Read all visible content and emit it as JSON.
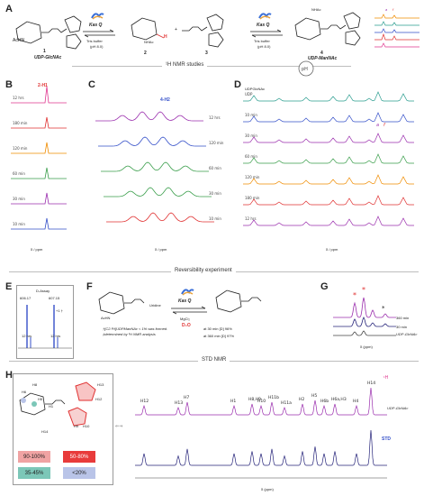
{
  "panels": {
    "A": {
      "label": "A",
      "compounds": [
        {
          "number": "1",
          "name": "UDP-GlcNAc"
        },
        {
          "number": "2",
          "name": ""
        },
        {
          "number": "3",
          "name": ""
        },
        {
          "number": "4",
          "name": "UDP-ManNAc"
        }
      ],
      "enzyme": "Kas Q",
      "buffer": "Tris buffer",
      "ph": "(pH 8.0)",
      "nmr_note": "¹H NMR studies",
      "sugar_labels": {
        "acnh": "AcHN",
        "nhac": "NHAc",
        "h": "H",
        "oh": "HO"
      },
      "side_peaks": {
        "a": "a",
        "f": "f"
      }
    },
    "B": {
      "label": "B",
      "peak_title": "2-H1",
      "traces": [
        "12 hrs",
        "180 min",
        "120 min",
        "60 min",
        "30 min",
        "10 min"
      ],
      "axis": "δ / ppm"
    },
    "C": {
      "label": "C",
      "peak_title": "4-H2",
      "traces": [
        "12 hrs",
        "120 min",
        "60 min",
        "30 min",
        "10 min"
      ],
      "axis": "δ / ppm"
    },
    "D": {
      "label": "D",
      "header": "UDPGlcNAc",
      "traces": [
        "UDP",
        "10 min",
        "30 min",
        "60 min",
        "120 min",
        "180 min",
        "12 hrs"
      ],
      "markers": [
        "a",
        "f"
      ],
      "axis": "δ / ppm"
    },
    "reversibility": "Reversibility experiment",
    "E": {
      "label": "E",
      "title": "D-Assay",
      "mz_left": "606.17",
      "mz_right": "607.15",
      "time_left": "12 hrs",
      "time_right": "12 hrs",
      "shift_note": "+1 †"
    },
    "F": {
      "label": "F",
      "enzyme": "Kas Q",
      "reagents": "MgCl₂",
      "solvent": "D₂O",
      "uridine": "Uridine",
      "acnh": "AcHN",
      "note": "†[C2-²H]UDPManNAc < 1% was formed. ‡determined by ¹H NMR analysis",
      "result_30": "at 30 min [D] 96%",
      "result_360": "at 360 min [D] 97%"
    },
    "G": {
      "label": "G",
      "traces": [
        "360 min",
        "30 min"
      ],
      "ref": "UDP-GlcNAc",
      "axis": "δ (ppm)",
      "star": "*"
    },
    "std": "STD NMR",
    "H": {
      "label": "H",
      "legend": [
        {
          "text": "90-100%",
          "color": "#f0a3a3"
        },
        {
          "text": "50-80%",
          "color": "#e83b3b"
        },
        {
          "text": "35-45%",
          "color": "#7cc7b8"
        },
        {
          "text": "<20%",
          "color": "#b9c4e8"
        }
      ],
      "atom_labels": [
        "H8",
        "H6",
        "H5",
        "H4",
        "H3",
        "H2",
        "H1",
        "H7",
        "H9",
        "H10",
        "H11",
        "H12",
        "H13",
        "H14"
      ],
      "peaks_top": [
        "H12",
        "H13",
        "H7",
        "H1",
        "H8,H9",
        "H10",
        "H11b",
        "H11a",
        "H2",
        "H5",
        "H6b",
        "H6a,H3",
        "H4",
        "H14"
      ],
      "top_label": "¹H",
      "ref_label": "UDP-GlcNAc",
      "std_label": "STD",
      "axis": "δ (ppm)",
      "arrow": "⇐⇒"
    }
  },
  "colors": {
    "purple": "#9b2fae",
    "navy": "#26247a",
    "red": "#e03131",
    "teal": "#2a9d8f",
    "blue": "#3550c9",
    "orange": "#f08c00",
    "green": "#3a9e4b",
    "magenta": "#e0368f"
  }
}
